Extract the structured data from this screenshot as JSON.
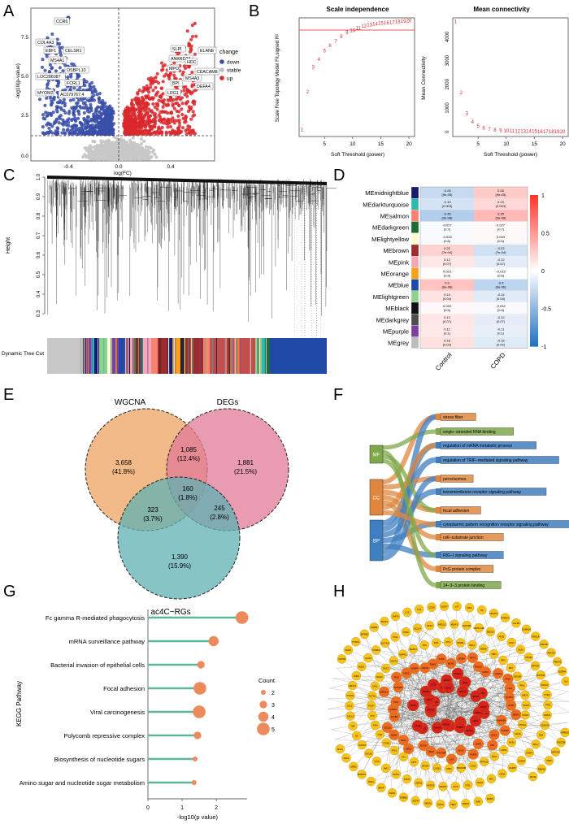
{
  "panel_letters": [
    "A",
    "B",
    "C",
    "D",
    "E",
    "F",
    "G",
    "H"
  ],
  "panelA": {
    "xlabel": "log(FC)",
    "ylabel": "-log10(p-value)",
    "xticks": [
      "-0.4",
      "0.0",
      "0.4"
    ],
    "yticks": [
      "0.0",
      "2.5",
      "5.0",
      "7.5"
    ],
    "legend_title": "change",
    "legend": [
      {
        "label": "down",
        "color": "#3a4fa8"
      },
      {
        "label": "stable",
        "color": "#bdbdbd"
      },
      {
        "label": "up",
        "color": "#d9282c"
      }
    ],
    "genes_left": [
      "CCR6",
      "COL4A3",
      "EBF1",
      "CELSR1",
      "MS4A1",
      "OSBPL10",
      "LOC286087",
      "FCRL1",
      "MYOM2",
      "AC079767.4"
    ],
    "genes_right": [
      "SLPI",
      "ELANE",
      "ANKRD22",
      "HDC",
      "MPO",
      "CEACAM8",
      "MS4A3",
      "BPI",
      "DEFA4",
      "LRG1"
    ]
  },
  "panelB": {
    "left": {
      "title": "Scale independence",
      "xlabel": "Soft Threshold (power)",
      "ylabel": "Scale Free Topology Model Fit,signed R²",
      "xticks": [
        "5",
        "10",
        "15",
        "20"
      ]
    },
    "right": {
      "title": "Mean connectivity",
      "xlabel": "Soft Threshold (power)",
      "ylabel": "Mean Connectivity",
      "xticks": [
        "5",
        "10",
        "15",
        "20"
      ],
      "yticks": [
        "0",
        "1000",
        "2000",
        "3000",
        "4000"
      ]
    }
  },
  "panelC": {
    "ylabel": "Height",
    "yticks": [
      "0.3",
      "0.4",
      "0.5",
      "0.6",
      "0.7",
      "0.8",
      "0.9",
      "1.0"
    ],
    "color_bar_label": "Dynamic Tree Cut"
  },
  "panelD": {
    "columns": [
      "Control",
      "COPD"
    ],
    "colorbar_ticks": [
      "1",
      "0.5",
      "0",
      "-0.5",
      "-1"
    ],
    "modules": [
      {
        "name": "MEmidnightblue",
        "color": "#191970",
        "c": "-0.26",
        "cp": "(9e-05)",
        "d": "0.26",
        "dp": "(9e-05)"
      },
      {
        "name": "MEdarkturquoise",
        "color": "#2bb8b4",
        "c": "-0.19",
        "cp": "(0.003)",
        "d": "0.19",
        "dp": "(0.003)"
      },
      {
        "name": "MEsalmon",
        "color": "#fa8072",
        "c": "-0.35",
        "cp": "(3e-08)",
        "d": "0.35",
        "dp": "(3e-08)"
      },
      {
        "name": "MEdarkgreen",
        "color": "#1e6b36",
        "c": "-0.027",
        "cp": "(0.7)",
        "d": "0.027",
        "dp": "(0.7)"
      },
      {
        "name": "MElightyellow",
        "color": "#fffbd0",
        "c": "-0.033",
        "cp": "(0.6)",
        "d": "0.033",
        "dp": "(0.6)"
      },
      {
        "name": "MEbrown",
        "color": "#9b2d2d",
        "c": "0.22",
        "cp": "(7e-04)",
        "d": "-0.22",
        "dp": "(7e-04)"
      },
      {
        "name": "MEpink",
        "color": "#f2a8b8",
        "c": "0.12",
        "cp": "(0.07)",
        "d": "-0.12",
        "dp": "(0.07)"
      },
      {
        "name": "MEorange",
        "color": "#f5a11c",
        "c": "0.015",
        "cp": "(0.8)",
        "d": "-0.015",
        "dp": "(0.8)"
      },
      {
        "name": "MEblue",
        "color": "#1f4aa8",
        "c": "0.3",
        "cp": "(6e-06)",
        "d": "-0.3",
        "dp": "(6e-06)"
      },
      {
        "name": "MElightgreen",
        "color": "#8fd18f",
        "c": "0.14",
        "cp": "(0.04)",
        "d": "-0.14",
        "dp": "(0.04)"
      },
      {
        "name": "MEblack",
        "color": "#111111",
        "c": "0.034",
        "cp": "(0.6)",
        "d": "-0.034",
        "dp": "(0.6)"
      },
      {
        "name": "MEdarkgrey",
        "color": "#4d4d4d",
        "c": "0.12",
        "cp": "(0.07)",
        "d": "-0.12",
        "dp": "(0.07)"
      },
      {
        "name": "MEpurple",
        "color": "#7a3fa0",
        "c": "0.11",
        "cp": "(0.1)",
        "d": "-0.11",
        "dp": "(0.1)"
      },
      {
        "name": "MEgrey",
        "color": "#bcbcbc",
        "c": "0.15",
        "cp": "(0.02)",
        "d": "-0.15",
        "dp": "(0.02)"
      }
    ]
  },
  "panelE": {
    "sets": [
      {
        "name": "WGCNA",
        "color": "#f0ae73"
      },
      {
        "name": "DEGs",
        "color": "#e07a97"
      },
      {
        "name": "ac4C−RGs",
        "color": "#5fb0b3"
      }
    ],
    "regions": [
      {
        "id": "wgcna-only",
        "count": "3,658",
        "pct": "(41.8%)"
      },
      {
        "id": "wgcna-degs",
        "count": "1,085",
        "pct": "(12.4%)"
      },
      {
        "id": "degs-only",
        "count": "1,881",
        "pct": "(21.5%)"
      },
      {
        "id": "all-three",
        "count": "160",
        "pct": "(1.8%)"
      },
      {
        "id": "wgcna-ac4c",
        "count": "323",
        "pct": "(3.7%)"
      },
      {
        "id": "degs-ac4c",
        "count": "245",
        "pct": "(2.8%)"
      },
      {
        "id": "ac4c-only",
        "count": "1,390",
        "pct": "(15.9%)"
      }
    ]
  },
  "panelF": {
    "categories": [
      "MF",
      "CC",
      "BP"
    ],
    "terms": [
      {
        "label": "stress fiber",
        "cat": "CC"
      },
      {
        "label": "single−stranded RNA binding",
        "cat": "MF"
      },
      {
        "label": "regulation of mRNA metabolic process",
        "cat": "BP"
      },
      {
        "label": "regulation of TRIF−mediated signaling pathway",
        "cat": "BP"
      },
      {
        "label": "peroxisomes",
        "cat": "CC"
      },
      {
        "label": "transmembrane receptor signaling pathway",
        "cat": "BP"
      },
      {
        "label": "focal adhesion",
        "cat": "CC"
      },
      {
        "label": "cytoplasmic pattern recognition receptor signaling pathway",
        "cat": "BP"
      },
      {
        "label": "cell−substrate junction",
        "cat": "CC"
      },
      {
        "label": "RIG−I signaling pathway",
        "cat": "BP"
      },
      {
        "label": "PcG protein complex",
        "cat": "CC"
      },
      {
        "label": "14−3−3 protein binding",
        "cat": "MF"
      }
    ]
  },
  "panelG": {
    "ylabel": "KEGG Pathway",
    "xlabel": "-log10(p value)",
    "xticks": [
      "0",
      "1",
      "2"
    ],
    "legend_title": "Count",
    "legend": [
      "2",
      "3",
      "4",
      "5"
    ]
  },
  "chart_data": {
    "type": "scatter",
    "ylabel": "KEGG Pathway",
    "xlabel": "-log10(p value)",
    "xlim": [
      0,
      2.9
    ],
    "categories": [
      "Fc gamma R-mediated phagocytosis",
      "mRNA surveillance pathway",
      "Bacterial invasion of epithelial cells",
      "Focal adhesion",
      "Viral carcinogenesis",
      "Polycomb repressive complex",
      "Biosynthesis of nucleotide sugars",
      "Amino sugar and nucleotide sugar metabolism"
    ],
    "values": [
      2.75,
      1.92,
      1.55,
      1.52,
      1.5,
      1.45,
      1.38,
      1.35
    ],
    "counts": [
      5,
      4,
      3,
      5,
      5,
      3,
      2,
      2
    ]
  },
  "panelH": {
    "hub_genes": [
      "SRP14",
      "HNRNPA",
      "CDK1",
      "EIF4A3",
      "RPL4",
      "PTBP1",
      "RPS6",
      "EIF2S1",
      "YWHAB",
      "PABPC1",
      "SF3B1",
      "NCL",
      "XRCC6",
      "DDX5",
      "HSPA8",
      "RPL7",
      "SNRPE",
      "CCT2",
      "RAN",
      "PCNA",
      "EZH2",
      "SUZ12",
      "EED",
      "PRMT5",
      "CBX8",
      "RING1",
      "RPS3"
    ],
    "inner_genes": [
      "ACTB",
      "SRSF1",
      "HNRNPK",
      "NOP56",
      "DKC1",
      "FBL",
      "NHP2",
      "PUF60",
      "DHX9",
      "ILF3",
      "SYNCRIP",
      "UBE2I",
      "TOP2A",
      "SMC2",
      "KIF11",
      "BUB1",
      "CDC20",
      "CCNB1",
      "AURKA",
      "PLK1",
      "MAD2L1",
      "NUSAP1",
      "TPX2",
      "KIF2C",
      "CENPF",
      "CDKN3",
      "RRM2",
      "TYMS",
      "MCM2",
      "MCM4",
      "RFC4",
      "POLE2",
      "GINS2",
      "CHEK1",
      "FEN1",
      "LIG1",
      "RAD51"
    ],
    "outer_genes": [
      "CD69",
      "SAV1",
      "PPP1CB",
      "CTSS",
      "PRPF40B",
      "MSI2",
      "CLNS1",
      "LRCH4",
      "AKT1",
      "VCL",
      "PTK2",
      "ITGB1",
      "TLN1",
      "PXN",
      "ZYX",
      "FLNA",
      "ACTN1",
      "CAV1",
      "RHOA",
      "RAC1",
      "CDC42",
      "MAPK1",
      "MAPK3",
      "JUN",
      "FOS",
      "MYC",
      "NFKB1",
      "RELA",
      "IKBKB",
      "TBK1",
      "IRF3",
      "IRF7",
      "DDX58",
      "IFIH1",
      "MAVS",
      "TRAF3",
      "TRAF6",
      "STING1",
      "CGAS",
      "OAS1",
      "OAS2",
      "MX1",
      "ISG15",
      "IFIT1",
      "IFIT3",
      "RSAD2",
      "HERC5",
      "USP18",
      "STAT1",
      "STAT2",
      "JAK1",
      "TYK2",
      "SOCS1",
      "SOCS3",
      "IL6",
      "TNF",
      "CXCL8",
      "CCL2",
      "PTGS2",
      "HMOX1",
      "SOD2",
      "NQO1",
      "GCLM",
      "TXNRD1",
      "SLC7A11",
      "FTH1",
      "TFRC",
      "ACSL4",
      "GPX4",
      "NFE2L2",
      "KEAP1",
      "SQSTM1",
      "MAP1LC3B",
      "BECN1",
      "ATG5",
      "ATG7",
      "ULK1",
      "MTOR",
      "RPTOR",
      "RICTOR",
      "PIK3CA",
      "PTEN",
      "TP53",
      "MDM2",
      "CDKN1A",
      "BAX",
      "BCL2",
      "CASP3",
      "CASP8",
      "CASP9",
      "PARP1",
      "XIAP",
      "BIRC5",
      "TERT",
      "HIF1A",
      "VEGFA",
      "EGFR",
      "ERBB2",
      "KRAS",
      "BRAF",
      "RAF1",
      "MAP2K1",
      "GRB2",
      "SOS1",
      "SHC1",
      "GAB1",
      "CBL",
      "SYK",
      "LYN",
      "BTK",
      "PLCG2",
      "CD19",
      "CD79A",
      "CD79B",
      "BLNK",
      "PTPN6",
      "INPP5D",
      "SH2B3",
      "SKAP1",
      "ZAP70",
      "LCK",
      "FYN",
      "CD3E",
      "CD247",
      "LAT",
      "VAV1",
      "ITK",
      "NFATC1",
      "PPP3CA",
      "CALM1",
      "CAMK2A",
      "PRKCA",
      "PRKCB",
      "PRKCD",
      "PRKCQ",
      "ESRRA",
      "ILK",
      "FSTL1",
      "TRAM1",
      "TRIP6",
      "TYMP",
      "SPRED2",
      "FNDC3B",
      "SEPHS2",
      "ZNF3",
      "RBM15",
      "SP110"
    ]
  }
}
